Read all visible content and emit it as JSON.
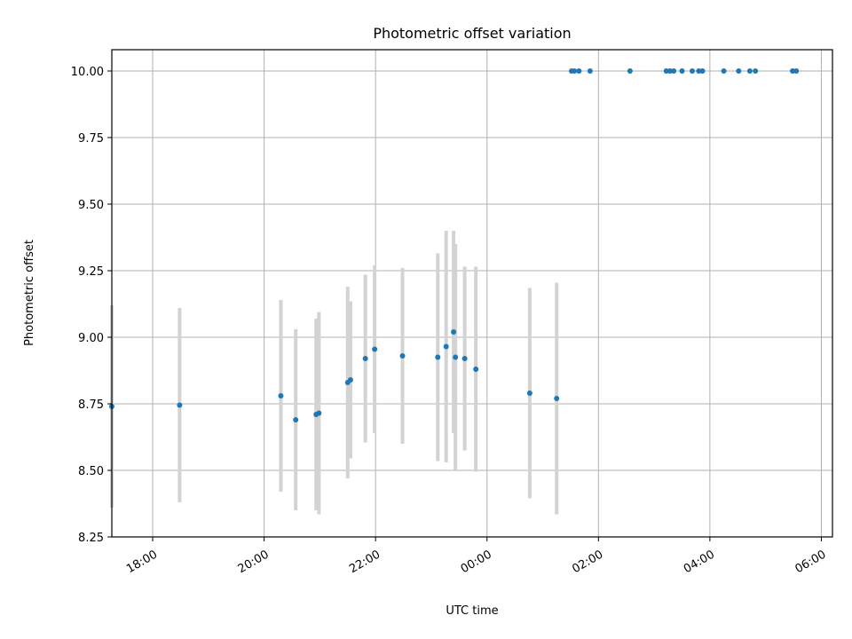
{
  "chart_data": {
    "type": "scatter",
    "title": "Photometric offset variation",
    "xlabel": "UTC time",
    "ylabel": "Photometric offset",
    "x_axis_type": "time",
    "xlim": [
      "17:16",
      "06:12"
    ],
    "ylim": [
      8.25,
      10.08
    ],
    "grid": true,
    "x_ticks": [
      "18:00",
      "20:00",
      "22:00",
      "00:00",
      "02:00",
      "04:00",
      "06:00"
    ],
    "y_ticks": [
      "8.25",
      "8.50",
      "8.75",
      "9.00",
      "9.25",
      "9.50",
      "9.75",
      "10.00"
    ],
    "x_tick_values": [
      "18:00",
      "20:00",
      "22:00",
      "00:00",
      "02:00",
      "04:00",
      "06:00"
    ],
    "y_tick_values": [
      8.25,
      8.5,
      8.75,
      9.0,
      9.25,
      9.5,
      9.75,
      10.0
    ],
    "colors": {
      "points": "#1f77b4",
      "errorbars": "#d3d3d3",
      "grid": "#b0b0b0"
    },
    "series": [
      {
        "points": [
          {
            "x": "17:16",
            "y": 8.74,
            "err": 0.38
          },
          {
            "x": "18:29",
            "y": 8.745,
            "err": 0.365
          },
          {
            "x": "20:18",
            "y": 8.78,
            "err": 0.36
          },
          {
            "x": "20:34",
            "y": 8.69,
            "err": 0.34
          },
          {
            "x": "20:56",
            "y": 8.71,
            "err": 0.36
          },
          {
            "x": "20:59",
            "y": 8.715,
            "err": 0.38
          },
          {
            "x": "21:30",
            "y": 8.83,
            "err": 0.36
          },
          {
            "x": "21:33",
            "y": 8.84,
            "err": 0.295
          },
          {
            "x": "21:49",
            "y": 8.92,
            "err": 0.315
          },
          {
            "x": "21:59",
            "y": 8.955,
            "err": 0.315
          },
          {
            "x": "22:29",
            "y": 8.93,
            "err": 0.33
          },
          {
            "x": "23:07",
            "y": 8.925,
            "err": 0.39
          },
          {
            "x": "23:16",
            "y": 8.965,
            "err": 0.435
          },
          {
            "x": "23:24",
            "y": 9.02,
            "err": 0.38
          },
          {
            "x": "23:26",
            "y": 8.925,
            "err": 0.425
          },
          {
            "x": "23:36",
            "y": 8.92,
            "err": 0.345
          },
          {
            "x": "23:48",
            "y": 8.88,
            "err": 0.385
          },
          {
            "x": "00:46",
            "y": 8.79,
            "err": 0.395
          },
          {
            "x": "01:15",
            "y": 8.77,
            "err": 0.435
          },
          {
            "x": "01:31",
            "y": 10.0
          },
          {
            "x": "01:34",
            "y": 10.0
          },
          {
            "x": "01:39",
            "y": 10.0
          },
          {
            "x": "01:51",
            "y": 10.0
          },
          {
            "x": "02:34",
            "y": 10.0
          },
          {
            "x": "03:13",
            "y": 10.0
          },
          {
            "x": "03:17",
            "y": 10.0
          },
          {
            "x": "03:21",
            "y": 10.0
          },
          {
            "x": "03:30",
            "y": 10.0
          },
          {
            "x": "03:41",
            "y": 10.0
          },
          {
            "x": "03:48",
            "y": 10.0
          },
          {
            "x": "03:52",
            "y": 10.0
          },
          {
            "x": "04:15",
            "y": 10.0
          },
          {
            "x": "04:31",
            "y": 10.0
          },
          {
            "x": "04:43",
            "y": 10.0
          },
          {
            "x": "04:49",
            "y": 10.0
          },
          {
            "x": "05:29",
            "y": 10.0
          },
          {
            "x": "05:33",
            "y": 10.0
          }
        ]
      }
    ]
  }
}
